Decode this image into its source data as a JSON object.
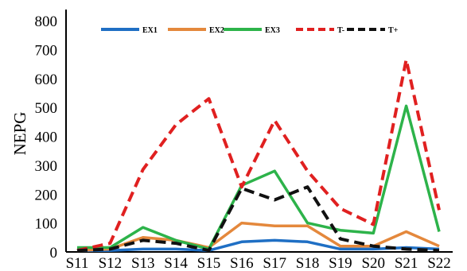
{
  "chart_data": {
    "type": "line",
    "title": "",
    "xlabel": "",
    "ylabel": "NEPG",
    "categories": [
      "S11",
      "S12",
      "S13",
      "S14",
      "S15",
      "S16",
      "S17",
      "S18",
      "S19",
      "S20",
      "S21",
      "S22"
    ],
    "ylim": [
      0,
      800
    ],
    "yticks": [
      0,
      100,
      200,
      300,
      400,
      500,
      600,
      700,
      800
    ],
    "grid": false,
    "legend_position": "top",
    "series": [
      {
        "name": "EX1",
        "color": "#1f6fc4",
        "dash": "solid",
        "values": [
          5,
          5,
          10,
          10,
          5,
          35,
          40,
          35,
          10,
          10,
          15,
          10
        ]
      },
      {
        "name": "EX2",
        "color": "#e4883c",
        "dash": "solid",
        "values": [
          5,
          10,
          50,
          40,
          15,
          100,
          90,
          90,
          20,
          20,
          70,
          20
        ]
      },
      {
        "name": "EX3",
        "color": "#2db34a",
        "dash": "solid",
        "values": [
          15,
          15,
          85,
          40,
          10,
          230,
          280,
          100,
          75,
          65,
          505,
          70
        ]
      },
      {
        "name": "T-",
        "color": "#e02020",
        "dash": "dashed",
        "values": [
          5,
          30,
          285,
          440,
          530,
          225,
          455,
          280,
          150,
          95,
          665,
          145
        ]
      },
      {
        "name": "T+",
        "color": "#111111",
        "dash": "dashed",
        "values": [
          5,
          10,
          40,
          30,
          5,
          220,
          180,
          225,
          45,
          20,
          10,
          5
        ]
      }
    ]
  }
}
